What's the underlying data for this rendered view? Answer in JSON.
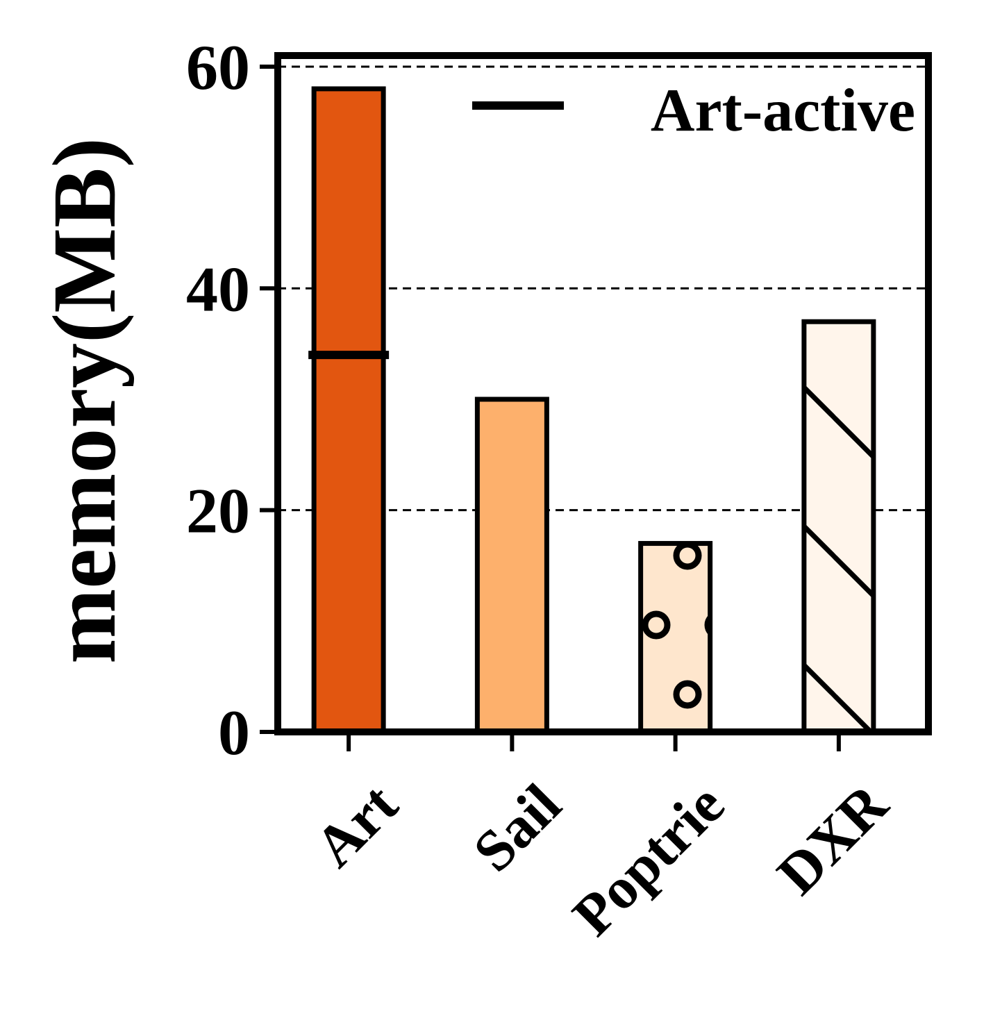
{
  "chart_data": {
    "type": "bar",
    "categories": [
      "Art",
      "Sail",
      "Poptrie",
      "DXR"
    ],
    "values": [
      58,
      30,
      17,
      37
    ],
    "colors": [
      "#e25610",
      "#fdb06c",
      "#fee6cd",
      "#fff5eb"
    ],
    "hatches": [
      "none",
      "none",
      "circles",
      "diagonal"
    ],
    "reference_line": {
      "name": "Art-active",
      "category": "Art",
      "value": 34
    },
    "ylabel": "memory(MB)",
    "xlabel": "",
    "title": "",
    "ylim": [
      0,
      61
    ],
    "yticks": [
      0,
      20,
      40,
      60
    ],
    "grid": "horizontal-dashed",
    "legend": {
      "placement": "top-right",
      "entries": [
        "Art-active"
      ]
    }
  }
}
